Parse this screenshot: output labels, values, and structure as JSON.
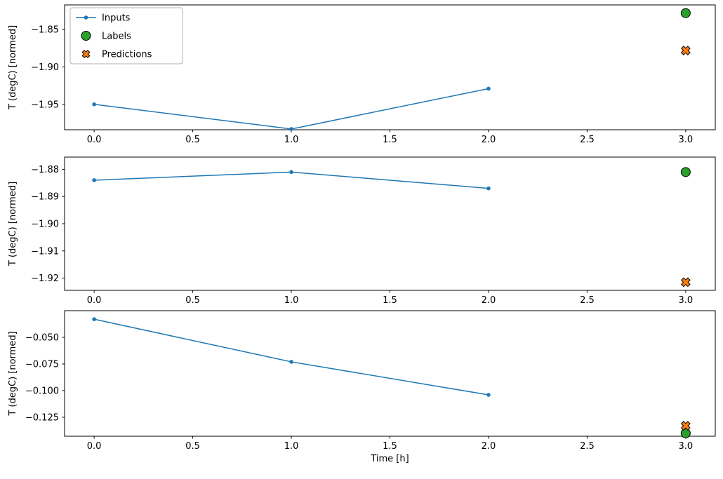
{
  "figure": {
    "background": "#ffffff",
    "xlabel": "Time [h]",
    "text_color": "#000000",
    "frame_color": "#000000",
    "legend": {
      "position": "upper-left",
      "entries": [
        {
          "label": "Inputs",
          "marker": "line-dot",
          "color": "#1f77b4"
        },
        {
          "label": "Labels",
          "marker": "circle",
          "color": "#2ca02c"
        },
        {
          "label": "Predictions",
          "marker": "x",
          "color": "#ff7f0e"
        }
      ]
    }
  },
  "chart_data": [
    {
      "type": "line",
      "title": "",
      "ylabel": "T (degC) [normed]",
      "xlim": [
        -0.15,
        3.15
      ],
      "ylim": [
        -1.984,
        -1.817
      ],
      "xticks": [
        0.0,
        0.5,
        1.0,
        1.5,
        2.0,
        2.5,
        3.0
      ],
      "xtick_labels": [
        "0.0",
        "0.5",
        "1.0",
        "1.5",
        "2.0",
        "2.5",
        "3.0"
      ],
      "yticks": [
        -1.85,
        -1.9,
        -1.95
      ],
      "ytick_labels": [
        "−1.85",
        "−1.90",
        "−1.95"
      ],
      "grid": false,
      "series": [
        {
          "name": "Inputs",
          "type": "line",
          "color": "#1f77b4",
          "x": [
            0,
            1,
            2
          ],
          "y": [
            -1.95,
            -1.983,
            -1.929
          ]
        },
        {
          "name": "Labels",
          "type": "scatter-circle",
          "color": "#2ca02c",
          "x": [
            3
          ],
          "y": [
            -1.828
          ]
        },
        {
          "name": "Predictions",
          "type": "scatter-x",
          "color": "#ff7f0e",
          "x": [
            3
          ],
          "y": [
            -1.878
          ]
        }
      ]
    },
    {
      "type": "line",
      "title": "",
      "ylabel": "T (degC) [normed]",
      "xlim": [
        -0.15,
        3.15
      ],
      "ylim": [
        -1.9245,
        -1.8755
      ],
      "xticks": [
        0.0,
        0.5,
        1.0,
        1.5,
        2.0,
        2.5,
        3.0
      ],
      "xtick_labels": [
        "0.0",
        "0.5",
        "1.0",
        "1.5",
        "2.0",
        "2.5",
        "3.0"
      ],
      "yticks": [
        -1.88,
        -1.89,
        -1.9,
        -1.91,
        -1.92
      ],
      "ytick_labels": [
        "−1.88",
        "−1.89",
        "−1.90",
        "−1.91",
        "−1.92"
      ],
      "grid": false,
      "series": [
        {
          "name": "Inputs",
          "type": "line",
          "color": "#1f77b4",
          "x": [
            0,
            1,
            2
          ],
          "y": [
            -1.884,
            -1.881,
            -1.887
          ]
        },
        {
          "name": "Labels",
          "type": "scatter-circle",
          "color": "#2ca02c",
          "x": [
            3
          ],
          "y": [
            -1.881
          ]
        },
        {
          "name": "Predictions",
          "type": "scatter-x",
          "color": "#ff7f0e",
          "x": [
            3
          ],
          "y": [
            -1.9215
          ]
        }
      ]
    },
    {
      "type": "line",
      "title": "",
      "ylabel": "T (degC) [normed]",
      "xlabel": "Time [h]",
      "xlim": [
        -0.15,
        3.15
      ],
      "ylim": [
        -0.1428,
        -0.025
      ],
      "xticks": [
        0.0,
        0.5,
        1.0,
        1.5,
        2.0,
        2.5,
        3.0
      ],
      "xtick_labels": [
        "0.0",
        "0.5",
        "1.0",
        "1.5",
        "2.0",
        "2.5",
        "3.0"
      ],
      "yticks": [
        -0.05,
        -0.075,
        -0.1,
        -0.125
      ],
      "ytick_labels": [
        "−0.050",
        "−0.075",
        "−0.100",
        "−0.125"
      ],
      "grid": false,
      "series": [
        {
          "name": "Inputs",
          "type": "line",
          "color": "#1f77b4",
          "x": [
            0,
            1,
            2
          ],
          "y": [
            -0.033,
            -0.073,
            -0.104
          ]
        },
        {
          "name": "Labels",
          "type": "scatter-circle",
          "color": "#2ca02c",
          "x": [
            3
          ],
          "y": [
            -0.14
          ]
        },
        {
          "name": "Predictions",
          "type": "scatter-x",
          "color": "#ff7f0e",
          "x": [
            3
          ],
          "y": [
            -0.133
          ]
        }
      ]
    }
  ]
}
